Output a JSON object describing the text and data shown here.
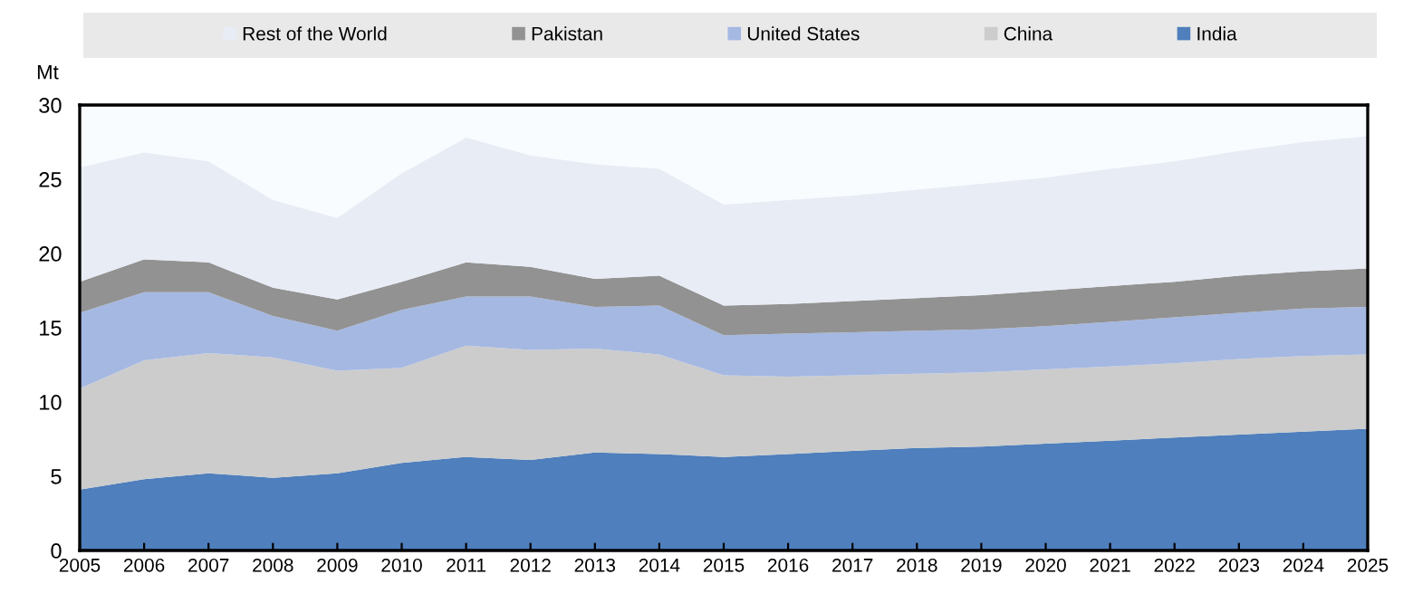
{
  "chart_data": {
    "type": "area",
    "stacked": true,
    "ylabel": "Mt",
    "legend": "top",
    "grid": false,
    "x": [
      2005,
      2006,
      2007,
      2008,
      2009,
      2010,
      2011,
      2012,
      2013,
      2014,
      2015,
      2016,
      2017,
      2018,
      2019,
      2020,
      2021,
      2022,
      2023,
      2024,
      2025
    ],
    "xlim": [
      2005,
      2025
    ],
    "xticks": [
      2005,
      2006,
      2007,
      2008,
      2009,
      2010,
      2011,
      2012,
      2013,
      2014,
      2015,
      2016,
      2017,
      2018,
      2019,
      2020,
      2021,
      2022,
      2023,
      2024,
      2025
    ],
    "ylim": [
      0,
      30
    ],
    "yticks": [
      0,
      5,
      10,
      15,
      20,
      25,
      30
    ],
    "series": [
      {
        "name": "India",
        "color": "#4f7fbc",
        "values": [
          4.1,
          4.8,
          5.2,
          4.9,
          5.2,
          5.9,
          6.3,
          6.1,
          6.6,
          6.5,
          6.3,
          6.5,
          6.7,
          6.9,
          7.0,
          7.2,
          7.4,
          7.6,
          7.8,
          8.0,
          8.2
        ]
      },
      {
        "name": "China",
        "color": "#cccccc",
        "values": [
          6.8,
          8.0,
          8.1,
          8.1,
          6.9,
          6.4,
          7.5,
          7.4,
          7.0,
          6.7,
          5.5,
          5.2,
          5.1,
          5.0,
          5.0,
          5.0,
          5.0,
          5.0,
          5.1,
          5.1,
          5.0
        ]
      },
      {
        "name": "United States",
        "color": "#a5b8e2",
        "values": [
          5.1,
          4.6,
          4.1,
          2.8,
          2.7,
          3.9,
          3.3,
          3.6,
          2.8,
          3.3,
          2.7,
          2.9,
          2.9,
          2.9,
          2.9,
          2.9,
          3.0,
          3.1,
          3.1,
          3.2,
          3.2
        ]
      },
      {
        "name": "Pakistan",
        "color": "#929292",
        "values": [
          2.1,
          2.2,
          2.0,
          1.9,
          2.1,
          1.9,
          2.3,
          2.0,
          1.9,
          2.0,
          2.0,
          2.0,
          2.1,
          2.2,
          2.3,
          2.4,
          2.4,
          2.4,
          2.5,
          2.5,
          2.6
        ]
      },
      {
        "name": "Rest of the World",
        "color": "#e8ecf5",
        "values": [
          7.7,
          7.2,
          6.8,
          5.9,
          5.5,
          7.3,
          8.4,
          7.5,
          7.7,
          7.2,
          6.8,
          7.0,
          7.1,
          7.3,
          7.5,
          7.6,
          7.9,
          8.1,
          8.4,
          8.7,
          8.9
        ]
      }
    ]
  }
}
